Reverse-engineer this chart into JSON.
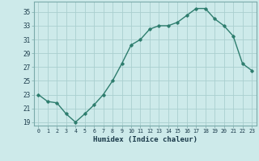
{
  "x": [
    0,
    1,
    2,
    3,
    4,
    5,
    6,
    7,
    8,
    9,
    10,
    11,
    12,
    13,
    14,
    15,
    16,
    17,
    18,
    19,
    20,
    21,
    22,
    23
  ],
  "y": [
    23,
    22,
    21.8,
    20.2,
    19,
    20.2,
    21.5,
    23,
    25,
    27.5,
    30.2,
    31,
    32.5,
    33,
    33,
    33.5,
    34.5,
    35.5,
    35.5,
    34,
    33,
    31.5,
    27.5,
    26.5
  ],
  "xlabel": "Humidex (Indice chaleur)",
  "ylim": [
    18.5,
    36.5
  ],
  "xlim": [
    -0.5,
    23.5
  ],
  "yticks": [
    19,
    21,
    23,
    25,
    27,
    29,
    31,
    33,
    35
  ],
  "xticks": [
    0,
    1,
    2,
    3,
    4,
    5,
    6,
    7,
    8,
    9,
    10,
    11,
    12,
    13,
    14,
    15,
    16,
    17,
    18,
    19,
    20,
    21,
    22,
    23
  ],
  "xtick_labels": [
    "0",
    "1",
    "2",
    "3",
    "4",
    "5",
    "6",
    "7",
    "8",
    "9",
    "10",
    "11",
    "12",
    "13",
    "14",
    "15",
    "16",
    "17",
    "18",
    "19",
    "20",
    "21",
    "22",
    "23"
  ],
  "line_color": "#2e7d6e",
  "marker": "D",
  "marker_size": 1.8,
  "bg_color": "#cdeaea",
  "grid_color": "#aacfcf",
  "line_width": 1.0
}
